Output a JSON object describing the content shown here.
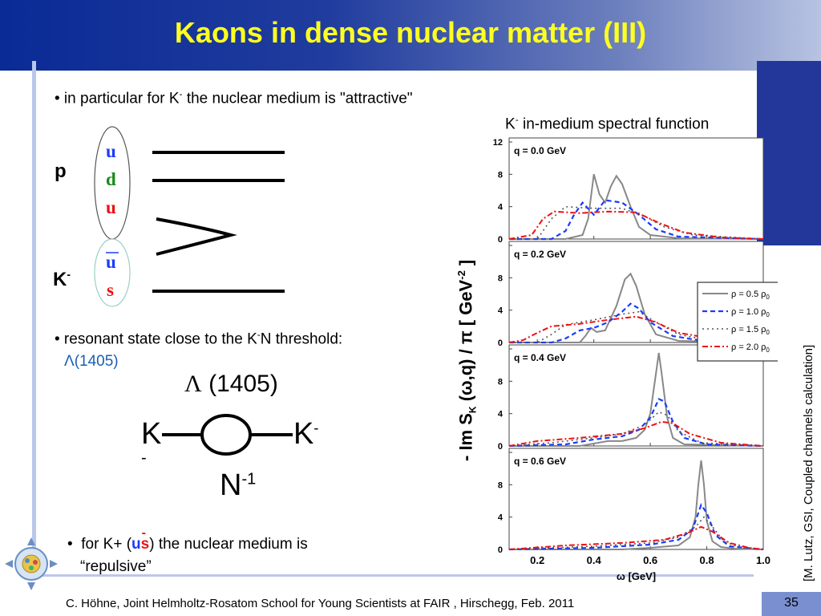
{
  "header": {
    "title": "Kaons in dense nuclear matter (III)"
  },
  "bullets": {
    "b1_pre": "• in particular for K",
    "b1_sup": "-",
    "b1_post": " the nuclear medium is \"attractive\"",
    "b2_pre": "• resonant state close to the K",
    "b2_sup": "-",
    "b2_post": "N threshold:",
    "b2_lambda": "Λ(1405)",
    "b3_pre": "for K+ (",
    "b3_u": "u",
    "b3_s": "s",
    "b3_post": ") the nuclear medium is",
    "b3_line2": "“repulsive”"
  },
  "quarks": {
    "p_label": "p",
    "p_q1": "u",
    "p_q2": "d",
    "p_q3": "u",
    "k_label": "K",
    "k_sup": "-",
    "k_q1": "u",
    "k_q2": "s"
  },
  "diagram": {
    "lambda_sym": "Λ",
    "lambda_num": " (1405)",
    "left": "K",
    "left_sup": "-",
    "right": "K",
    "right_sup": "-",
    "bottom": "N",
    "bottom_sup": "-1",
    "left_bar": "-"
  },
  "chart": {
    "title_pre": "K",
    "title_sup": "-",
    "title_post": " in-medium spectral function",
    "ylabel": "- Im S",
    "ylabel_rest": " (ω,q) / π  [ GeV",
    "ylabel_end": " ]",
    "xlabel": "ω [GeV]",
    "credit": "[M. Lutz, GSI, Coupled channels calculation]"
  },
  "chart_data": {
    "type": "line",
    "xlim": [
      0.1,
      1.0
    ],
    "ylim": [
      0,
      12
    ],
    "x_ticks": [
      "0.2",
      "0.4",
      "0.6",
      "0.8",
      "1.0"
    ],
    "y_ticks": [
      "0",
      "4",
      "8",
      "12"
    ],
    "panels": [
      {
        "label": "q = 0.0 GeV",
        "series": [
          {
            "name": "ρ = 0.5 ρ0",
            "x": [
              0.1,
              0.3,
              0.36,
              0.38,
              0.4,
              0.42,
              0.44,
              0.46,
              0.48,
              0.5,
              0.53,
              0.56,
              0.6,
              0.7,
              1.0
            ],
            "y": [
              0,
              0,
              0.5,
              2.5,
              8.0,
              5.5,
              4.5,
              6.5,
              7.8,
              6.8,
              4.0,
              1.5,
              0.5,
              0.1,
              0
            ]
          },
          {
            "name": "ρ = 1.0 ρ0",
            "x": [
              0.1,
              0.25,
              0.3,
              0.33,
              0.36,
              0.4,
              0.44,
              0.5,
              0.56,
              0.62,
              0.7,
              1.0
            ],
            "y": [
              0,
              0,
              1.0,
              3.0,
              4.5,
              3.0,
              4.8,
              4.5,
              3.0,
              1.2,
              0.3,
              0
            ]
          },
          {
            "name": "ρ = 1.5 ρ0",
            "x": [
              0.1,
              0.2,
              0.25,
              0.3,
              0.4,
              0.5,
              0.58,
              0.65,
              0.75,
              1.0
            ],
            "y": [
              0,
              0,
              2.5,
              4.0,
              3.8,
              3.8,
              2.8,
              1.5,
              0.5,
              0
            ]
          },
          {
            "name": "ρ = 2.0 ρ0",
            "x": [
              0.1,
              0.18,
              0.22,
              0.26,
              0.35,
              0.45,
              0.55,
              0.63,
              0.72,
              0.85,
              1.0
            ],
            "y": [
              0,
              0.5,
              2.5,
              3.4,
              3.2,
              3.4,
              3.3,
              2.0,
              0.8,
              0.2,
              0
            ]
          }
        ]
      },
      {
        "label": "q = 0.2 GeV",
        "series": [
          {
            "name": "ρ = 0.5 ρ0",
            "x": [
              0.1,
              0.35,
              0.37,
              0.39,
              0.41,
              0.44,
              0.48,
              0.51,
              0.53,
              0.55,
              0.58,
              0.62,
              0.7,
              1.0
            ],
            "y": [
              0,
              0,
              0.8,
              1.8,
              1.3,
              1.5,
              4.5,
              7.8,
              8.5,
              7.0,
              3.5,
              1.0,
              0.2,
              0
            ]
          },
          {
            "name": "ρ = 1.0 ρ0",
            "x": [
              0.1,
              0.25,
              0.3,
              0.35,
              0.4,
              0.45,
              0.5,
              0.53,
              0.56,
              0.6,
              0.68,
              0.8,
              1.0
            ],
            "y": [
              0,
              0,
              0.5,
              1.5,
              1.8,
              2.5,
              3.8,
              4.8,
              4.2,
              2.5,
              0.8,
              0.1,
              0
            ]
          },
          {
            "name": "ρ = 1.5 ρ0",
            "x": [
              0.1,
              0.2,
              0.25,
              0.3,
              0.4,
              0.5,
              0.56,
              0.62,
              0.7,
              0.8,
              1.0
            ],
            "y": [
              0,
              0,
              1.0,
              2.2,
              2.8,
              3.5,
              3.8,
              2.5,
              1.0,
              0.3,
              0
            ]
          },
          {
            "name": "ρ = 2.0 ρ0",
            "x": [
              0.1,
              0.15,
              0.2,
              0.25,
              0.35,
              0.45,
              0.55,
              0.62,
              0.7,
              0.85,
              1.0
            ],
            "y": [
              0,
              0.3,
              1.2,
              2.0,
              2.3,
              2.8,
              3.2,
              2.5,
              1.2,
              0.3,
              0
            ]
          }
        ]
      },
      {
        "label": "q = 0.4 GeV",
        "series": [
          {
            "name": "ρ = 0.5 ρ0",
            "x": [
              0.1,
              0.35,
              0.4,
              0.45,
              0.5,
              0.55,
              0.58,
              0.6,
              0.62,
              0.63,
              0.64,
              0.66,
              0.68,
              0.72,
              1.0
            ],
            "y": [
              0,
              0,
              0.3,
              0.6,
              0.6,
              1.0,
              2.0,
              4.0,
              9.0,
              11.5,
              9.0,
              3.5,
              1.0,
              0.2,
              0
            ]
          },
          {
            "name": "ρ = 1.0 ρ0",
            "x": [
              0.1,
              0.3,
              0.4,
              0.5,
              0.56,
              0.6,
              0.63,
              0.65,
              0.68,
              0.72,
              0.8,
              1.0
            ],
            "y": [
              0,
              0.2,
              0.8,
              1.2,
              2.0,
              3.5,
              5.8,
              5.5,
              3.0,
              1.0,
              0.2,
              0
            ]
          },
          {
            "name": "ρ = 1.5 ρ0",
            "x": [
              0.1,
              0.25,
              0.4,
              0.5,
              0.58,
              0.63,
              0.66,
              0.7,
              0.78,
              1.0
            ],
            "y": [
              0,
              0.4,
              1.0,
              1.5,
              2.6,
              4.2,
              3.8,
              1.8,
              0.4,
              0
            ]
          },
          {
            "name": "ρ = 2.0 ρ0",
            "x": [
              0.1,
              0.2,
              0.35,
              0.5,
              0.58,
              0.64,
              0.68,
              0.74,
              0.85,
              1.0
            ],
            "y": [
              0,
              0.6,
              1.0,
              1.5,
              2.2,
              3.0,
              2.8,
              1.5,
              0.4,
              0
            ]
          }
        ]
      },
      {
        "label": "q = 0.6 GeV",
        "series": [
          {
            "name": "ρ = 0.5 ρ0",
            "x": [
              0.1,
              0.5,
              0.6,
              0.7,
              0.74,
              0.76,
              0.77,
              0.78,
              0.79,
              0.8,
              0.82,
              0.85,
              0.9,
              1.0
            ],
            "y": [
              0,
              0,
              0.2,
              0.5,
              1.5,
              4.0,
              8.0,
              11.0,
              8.0,
              3.5,
              1.0,
              0.3,
              0.1,
              0
            ]
          },
          {
            "name": "ρ = 1.0 ρ0",
            "x": [
              0.1,
              0.4,
              0.6,
              0.7,
              0.75,
              0.78,
              0.8,
              0.83,
              0.88,
              1.0
            ],
            "y": [
              0,
              0.2,
              0.6,
              1.2,
              2.5,
              5.5,
              4.5,
              1.8,
              0.4,
              0
            ]
          },
          {
            "name": "ρ = 1.5 ρ0",
            "x": [
              0.1,
              0.4,
              0.6,
              0.7,
              0.76,
              0.79,
              0.82,
              0.86,
              0.92,
              1.0
            ],
            "y": [
              0,
              0.4,
              0.8,
              1.5,
              2.8,
              4.0,
              2.8,
              1.0,
              0.2,
              0
            ]
          },
          {
            "name": "ρ = 2.0 ρ0",
            "x": [
              0.1,
              0.3,
              0.5,
              0.65,
              0.73,
              0.78,
              0.82,
              0.88,
              0.95,
              1.0
            ],
            "y": [
              0,
              0.5,
              0.8,
              1.2,
              2.0,
              2.8,
              2.2,
              0.8,
              0.2,
              0
            ]
          }
        ]
      }
    ],
    "legend": [
      {
        "name_pre": "ρ = 0.5 ρ",
        "name_sub": "0"
      },
      {
        "name_pre": "ρ = 1.0 ρ",
        "name_sub": "0"
      },
      {
        "name_pre": "ρ = 1.5 ρ",
        "name_sub": "0"
      },
      {
        "name_pre": "ρ = 2.0 ρ",
        "name_sub": "0"
      }
    ],
    "legend_placement": "right of second panel",
    "series_colors": [
      "#888888",
      "#1a3cff",
      "#555555",
      "#ee1111"
    ]
  },
  "footer": {
    "text": "C. Höhne,   Joint Helmholtz-Rosatom School for Young Scientists at FAIR , Hirschegg, Feb. 2011",
    "page": "35"
  }
}
